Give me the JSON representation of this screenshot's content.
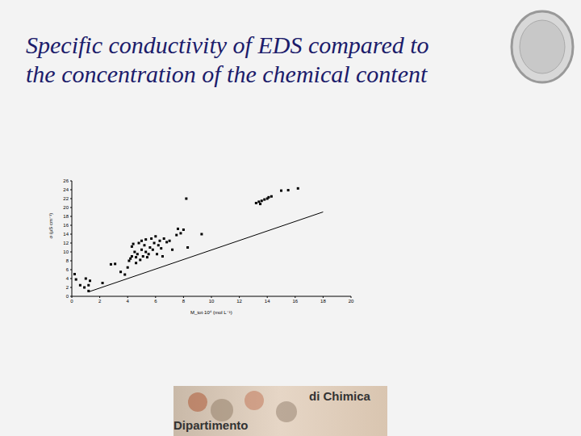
{
  "title": [
    "Specific conductivity of EDS compared to",
    "the concentration of the chemical content"
  ],
  "footer": {
    "line1": "di Chimica",
    "line2": "Dipartimento"
  },
  "chart_data": {
    "type": "scatter",
    "x_label": "M_tot·10⁴ (mol L⁻¹)",
    "y_label": "σ (µS cm⁻¹)",
    "xlim": [
      0,
      20
    ],
    "xticks": [
      0,
      2,
      4,
      6,
      8,
      10,
      12,
      14,
      16,
      18,
      20
    ],
    "ylim": [
      0,
      26
    ],
    "yticks": [
      0,
      2,
      4,
      6,
      8,
      10,
      12,
      14,
      16,
      18,
      20,
      22,
      24,
      26
    ],
    "grid": false,
    "series": [
      {
        "type": "scatter",
        "color": "#000000",
        "marker": "square",
        "x": [
          0.2,
          0.3,
          0.6,
          0.9,
          1.0,
          1.2,
          1.3,
          2.2,
          1.2,
          2.8,
          3.1,
          3.5,
          3.8,
          4.0,
          4.1,
          4.2,
          4.3,
          4.3,
          4.4,
          4.5,
          4.6,
          4.6,
          4.7,
          4.8,
          4.9,
          5.0,
          5.0,
          5.1,
          5.2,
          5.3,
          5.3,
          5.4,
          5.5,
          5.6,
          5.7,
          5.8,
          5.9,
          6.0,
          6.1,
          6.2,
          6.3,
          6.4,
          6.5,
          6.6,
          6.8,
          7.0,
          7.2,
          7.5,
          7.8,
          8.0,
          7.6,
          8.3,
          8.2,
          9.3,
          13.2,
          13.4,
          13.6,
          13.8,
          14.0,
          14.1,
          14.3,
          13.5,
          15.0,
          15.5,
          16.2
        ],
        "values": [
          5.0,
          3.8,
          2.5,
          2.0,
          4.0,
          1.2,
          3.5,
          3.0,
          2.5,
          7.2,
          7.3,
          5.5,
          4.9,
          6.5,
          8.0,
          8.5,
          9.0,
          11.2,
          11.8,
          10.0,
          7.5,
          8.8,
          9.5,
          12.0,
          8.2,
          10.5,
          12.5,
          9.0,
          11.5,
          12.8,
          10.0,
          8.8,
          9.5,
          11.0,
          13.0,
          10.5,
          12.0,
          13.5,
          9.5,
          11.5,
          12.5,
          10.8,
          9.0,
          13.0,
          12.2,
          12.5,
          10.5,
          13.8,
          14.2,
          15.0,
          15.2,
          11.0,
          22.0,
          14.0,
          21.0,
          21.3,
          21.5,
          21.8,
          22.0,
          22.3,
          22.5,
          20.8,
          23.8,
          23.9,
          24.3
        ]
      },
      {
        "type": "line",
        "color": "#000000",
        "x": [
          1.2,
          18
        ],
        "values": [
          1.0,
          19.0
        ]
      }
    ]
  }
}
